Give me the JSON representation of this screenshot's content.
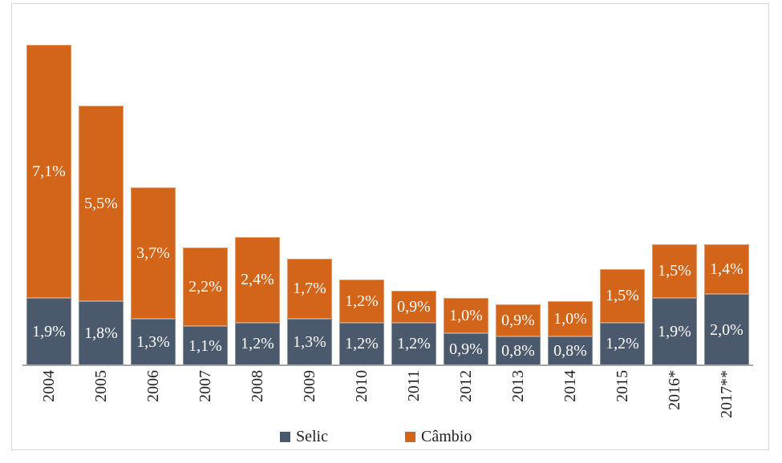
{
  "chart_data": {
    "type": "bar",
    "stacked": true,
    "orientation": "vertical",
    "title": "",
    "xlabel": "",
    "ylabel": "",
    "grid": false,
    "ylim": [
      0,
      9.0
    ],
    "value_label_color": "#ffffff",
    "axis_line_color": "#a6a6a6",
    "categories": [
      "2004",
      "2005",
      "2006",
      "2007",
      "2008",
      "2009",
      "2010",
      "2011",
      "2012",
      "2013",
      "2014",
      "2015",
      "2016*",
      "2017**"
    ],
    "series": [
      {
        "name": "Selic",
        "key": "selic",
        "color": "#4b596c",
        "values": [
          1.9,
          1.8,
          1.3,
          1.1,
          1.2,
          1.3,
          1.2,
          1.2,
          0.9,
          0.8,
          0.8,
          1.2,
          1.9,
          2.0
        ],
        "labels": [
          "1,9%",
          "1,8%",
          "1,3%",
          "1,1%",
          "1,2%",
          "1,3%",
          "1,2%",
          "1,2%",
          "0,9%",
          "0,8%",
          "0,8%",
          "1,2%",
          "1,9%",
          "2,0%"
        ]
      },
      {
        "name": "Câmbio",
        "key": "cambio",
        "color": "#d2651a",
        "values": [
          7.1,
          5.5,
          3.7,
          2.2,
          2.4,
          1.7,
          1.2,
          0.9,
          1.0,
          0.9,
          1.0,
          1.5,
          1.5,
          1.4
        ],
        "labels": [
          "7,1%",
          "5,5%",
          "3,7%",
          "2,2%",
          "2,4%",
          "1,7%",
          "1,2%",
          "0,9%",
          "1,0%",
          "0,9%",
          "1,0%",
          "1,5%",
          "1,5%",
          "1,4%"
        ]
      }
    ],
    "legend_position": "bottom"
  },
  "legend": {
    "items": [
      {
        "label": "Selic",
        "color": "#4b596c"
      },
      {
        "label": "Câmbio",
        "color": "#d2651a"
      }
    ]
  }
}
